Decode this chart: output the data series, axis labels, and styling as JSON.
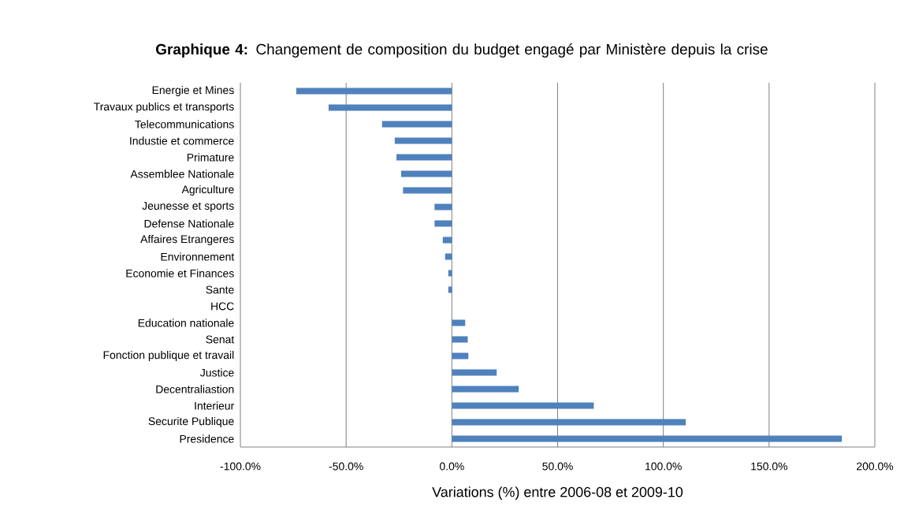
{
  "chart_data": {
    "type": "bar",
    "orientation": "horizontal",
    "title": "**Graphique 4:** Changement de composition du budget engagé par Ministère depuis la crise",
    "xlabel": "Variations (%) entre 2006-08 et 2009-10",
    "categories": [
      "Energie et Mines",
      "Travaux publics et transports",
      "Telecommunications",
      "Industie et commerce",
      "Primature",
      "Assemblee Nationale",
      "Agriculture",
      "Jeunesse et sports",
      "Defense Nationale",
      "Affaires Etrangeres",
      "Environnement",
      "Economie et Finances",
      "Sante",
      "HCC",
      "Education nationale",
      "Senat",
      "Fonction publique et travail",
      "Justice",
      "Decentraliastion",
      "Interieur",
      "Securite Publique",
      "Presidence"
    ],
    "values": [
      -73.6,
      -58.3,
      -33.0,
      -27.0,
      -26.2,
      -24.0,
      -23.1,
      -8.2,
      -8.2,
      -4.3,
      -3.2,
      -1.7,
      -1.7,
      0,
      6.3,
      7.5,
      7.8,
      21.2,
      31.6,
      67.1,
      110.6,
      184.4
    ],
    "color": "#4f81bd",
    "xlim": [
      -100,
      200
    ],
    "xticks": [
      {
        "value": -100,
        "label": "-100.0%"
      },
      {
        "value": -50,
        "label": "-50.0%"
      },
      {
        "value": 0,
        "label": "0.0%"
      },
      {
        "value": 50,
        "label": "50.0%"
      },
      {
        "value": 100,
        "label": "100.0%"
      },
      {
        "value": 150,
        "label": "150.0%"
      },
      {
        "value": 200,
        "label": "200.0%"
      }
    ],
    "grid": "x"
  }
}
